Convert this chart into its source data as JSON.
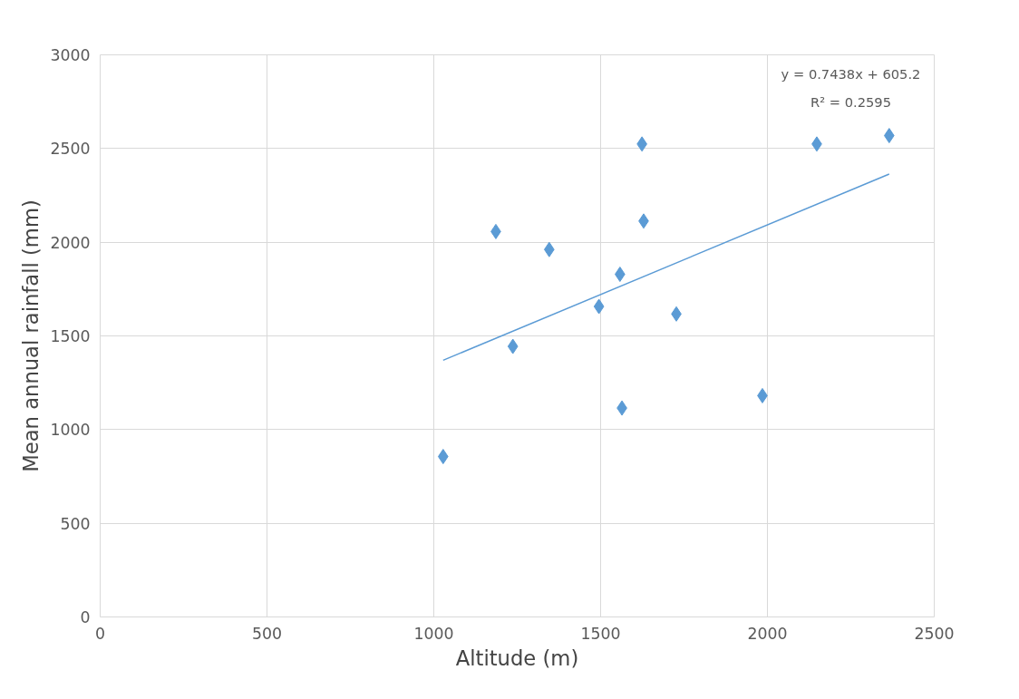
{
  "chart_data": {
    "type": "scatter",
    "xlabel": "Altitude (m)",
    "ylabel": "Mean annual rainfall (mm)",
    "xlim": [
      0,
      2500
    ],
    "xticks": [
      0,
      500,
      1000,
      1500,
      2000,
      2500
    ],
    "ylim": [
      0,
      3000
    ],
    "yticks": [
      0,
      500,
      1000,
      1500,
      2000,
      2500,
      3000
    ],
    "grid": true,
    "marker": "diamond",
    "series": [
      {
        "color": "#5b9bd5",
        "x": [
          1028,
          1186,
          1237,
          1346,
          1495,
          1558,
          1564,
          1624,
          1629,
          1727,
          1985,
          2148,
          2365
        ],
        "values": [
          856,
          2057,
          1444,
          1961,
          1657,
          1829,
          1115,
          2524,
          2113,
          1617,
          1181,
          2524,
          2569
        ]
      },
      {
        "type": "line",
        "color": "#5b9bd5",
        "marker": "none",
        "x": [
          1028,
          2365
        ],
        "values": [
          1370,
          2364
        ]
      }
    ],
    "annotations": [
      "y = 0.7438x + 605.2",
      "R² = 0.2595"
    ]
  }
}
